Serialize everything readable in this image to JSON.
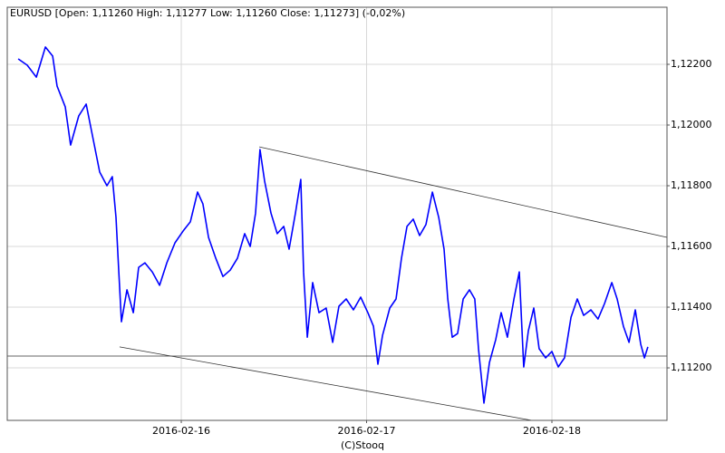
{
  "chart_data": {
    "type": "line",
    "title": "EURUSD [Open: 1,11260  High: 1,11277  Low: 1,11260  Close: 1,11273] (-0,02%)",
    "footer": "(C)Stooq",
    "x": [
      15.12,
      15.169,
      15.218,
      15.267,
      15.306,
      15.33,
      15.374,
      15.403,
      15.447,
      15.487,
      15.521,
      15.56,
      15.599,
      15.628,
      15.648,
      15.663,
      15.677,
      15.707,
      15.741,
      15.77,
      15.804,
      15.844,
      15.883,
      15.922,
      15.966,
      16.01,
      16.049,
      16.088,
      16.117,
      16.147,
      16.186,
      16.225,
      16.264,
      16.303,
      16.342,
      16.372,
      16.401,
      16.425,
      16.45,
      16.484,
      16.518,
      16.553,
      16.582,
      16.616,
      16.645,
      16.66,
      16.68,
      16.709,
      16.743,
      16.782,
      16.817,
      16.851,
      16.89,
      16.929,
      16.968,
      17.007,
      17.037,
      17.061,
      17.086,
      17.125,
      17.159,
      17.188,
      17.218,
      17.252,
      17.286,
      17.32,
      17.355,
      17.389,
      17.418,
      17.438,
      17.462,
      17.491,
      17.521,
      17.555,
      17.584,
      17.604,
      17.633,
      17.663,
      17.697,
      17.726,
      17.76,
      17.795,
      17.824,
      17.848,
      17.873,
      17.902,
      17.931,
      17.966,
      18.0,
      18.034,
      18.068,
      18.103,
      18.137,
      18.171,
      18.21,
      18.249,
      18.284,
      18.323,
      18.352,
      18.386,
      18.416,
      18.45,
      18.479,
      18.499,
      18.518
    ],
    "series": [
      {
        "name": "EURUSD",
        "color": "#0000ff",
        "values": [
          1.12218,
          1.12197,
          1.12158,
          1.12257,
          1.12227,
          1.12128,
          1.1206,
          1.11934,
          1.1203,
          1.12069,
          1.11964,
          1.11845,
          1.118,
          1.1183,
          1.11696,
          1.11516,
          1.11352,
          1.11457,
          1.11382,
          1.11531,
          1.11546,
          1.11516,
          1.11472,
          1.11546,
          1.11612,
          1.11651,
          1.11681,
          1.11779,
          1.1174,
          1.1163,
          1.11561,
          1.11501,
          1.11522,
          1.11561,
          1.11642,
          1.116,
          1.1171,
          1.11919,
          1.11815,
          1.1171,
          1.11642,
          1.11666,
          1.11591,
          1.1171,
          1.11821,
          1.11516,
          1.11301,
          1.11481,
          1.11382,
          1.11397,
          1.11284,
          1.11403,
          1.11427,
          1.11391,
          1.11433,
          1.11382,
          1.11337,
          1.11212,
          1.11307,
          1.11397,
          1.11427,
          1.11561,
          1.11666,
          1.1169,
          1.11636,
          1.11672,
          1.11779,
          1.11696,
          1.11591,
          1.11427,
          1.11301,
          1.11313,
          1.11427,
          1.11457,
          1.11427,
          1.11263,
          1.11084,
          1.11218,
          1.11293,
          1.11382,
          1.11301,
          1.11427,
          1.11516,
          1.11203,
          1.11322,
          1.11397,
          1.11263,
          1.11233,
          1.11254,
          1.11203,
          1.11233,
          1.11367,
          1.11427,
          1.11373,
          1.11391,
          1.11361,
          1.11412,
          1.11481,
          1.11427,
          1.11337,
          1.11284,
          1.11391,
          1.11278,
          1.11233,
          1.11269
        ]
      }
    ],
    "trendlines": [
      {
        "x": [
          16.421,
          18.621
        ],
        "y": [
          1.11928,
          1.1163
        ]
      },
      {
        "x": [
          15.667,
          17.892
        ],
        "y": [
          1.11269,
          1.11027
        ]
      }
    ],
    "hline": 1.11239,
    "xlim": [
      15.061,
      18.621
    ],
    "ylim": [
      1.11027,
      1.12388
    ],
    "xticks": [
      {
        "value": 16,
        "label": "2016-02-16"
      },
      {
        "value": 17,
        "label": "2016-02-17"
      },
      {
        "value": 18,
        "label": "2016-02-18"
      }
    ],
    "yticks": [
      {
        "value": 1.112,
        "label": "1,11200"
      },
      {
        "value": 1.114,
        "label": "1,11400"
      },
      {
        "value": 1.116,
        "label": "1,11600"
      },
      {
        "value": 1.118,
        "label": "1,11800"
      },
      {
        "value": 1.12,
        "label": "1,12000"
      },
      {
        "value": 1.122,
        "label": "1,12200"
      }
    ],
    "grid": true
  }
}
